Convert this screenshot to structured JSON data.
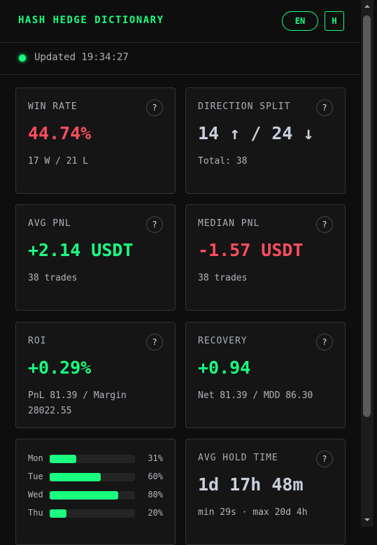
{
  "header": {
    "title": "HASH HEDGE DICTIONARY",
    "buttons": [
      "EN",
      "H"
    ]
  },
  "status": {
    "label": "Updated 19:34:27"
  },
  "help_icon": "?",
  "cards": [
    {
      "title": "WIN RATE",
      "value": "44.74%",
      "detail": "17 W / 21 L"
    },
    {
      "title": "DIRECTION SPLIT",
      "value": "14 ↑ / 24 ↓",
      "detail": "Total: 38"
    },
    {
      "title": "AVG PNL",
      "value": "+2.14 USDT",
      "detail": "38 trades"
    },
    {
      "title": "MEDIAN PNL",
      "value": "-1.57 USDT",
      "detail": "38 trades"
    },
    {
      "title": "ROI",
      "value": "+0.29%",
      "detail": "PnL 81.39 / Margin 28022.55"
    },
    {
      "title": "RECOVERY",
      "value": "+0.94",
      "detail": "Net 81.39 / MDD 86.30"
    },
    {
      "title": "AVG HOLD TIME",
      "value": "1d 17h 48m",
      "detail": "min 29s · max 20d 4h"
    }
  ],
  "weekdays": [
    {
      "day": "Mon",
      "value": 31,
      "label": "31%"
    },
    {
      "day": "Tue",
      "value": 60,
      "label": "60%"
    },
    {
      "day": "Wed",
      "value": 80,
      "label": "80%"
    },
    {
      "day": "Thu",
      "value": 20,
      "label": "20%"
    }
  ]
}
